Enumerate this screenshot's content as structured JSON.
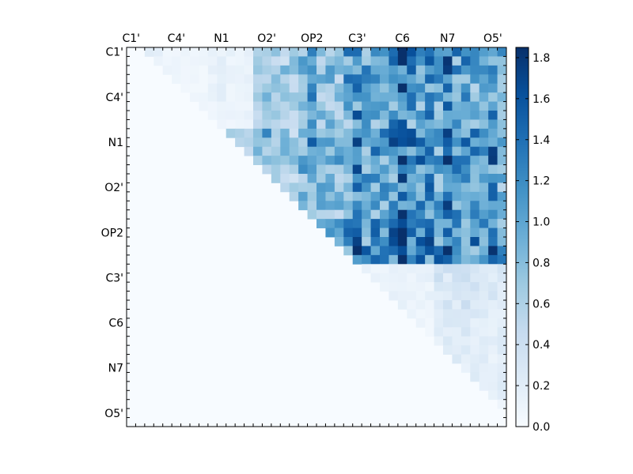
{
  "chart_data": {
    "type": "heatmap",
    "n": 42,
    "seed": 17,
    "row_tick_labels": [
      "C1'",
      "C4'",
      "N1",
      "O2'",
      "OP2",
      "C3'",
      "C6",
      "N7",
      "O5'"
    ],
    "col_tick_labels": [
      "C1'",
      "C4'",
      "N1",
      "O2'",
      "OP2",
      "C3'",
      "C6",
      "N7",
      "O5'"
    ],
    "tick_every": 5,
    "colorbar": {
      "min": 0.0,
      "max": 1.85,
      "ticks": [
        0.0,
        0.2,
        0.4,
        0.6,
        0.8,
        1.0,
        1.2,
        1.4,
        1.6,
        1.8
      ]
    },
    "colormap": [
      "#f7fbff",
      "#deebf7",
      "#c6dbef",
      "#9ecae1",
      "#6baed6",
      "#4292c6",
      "#2171b5",
      "#08519c",
      "#08306b"
    ],
    "grid": false,
    "title": "",
    "xlabel": "",
    "ylabel": ""
  }
}
